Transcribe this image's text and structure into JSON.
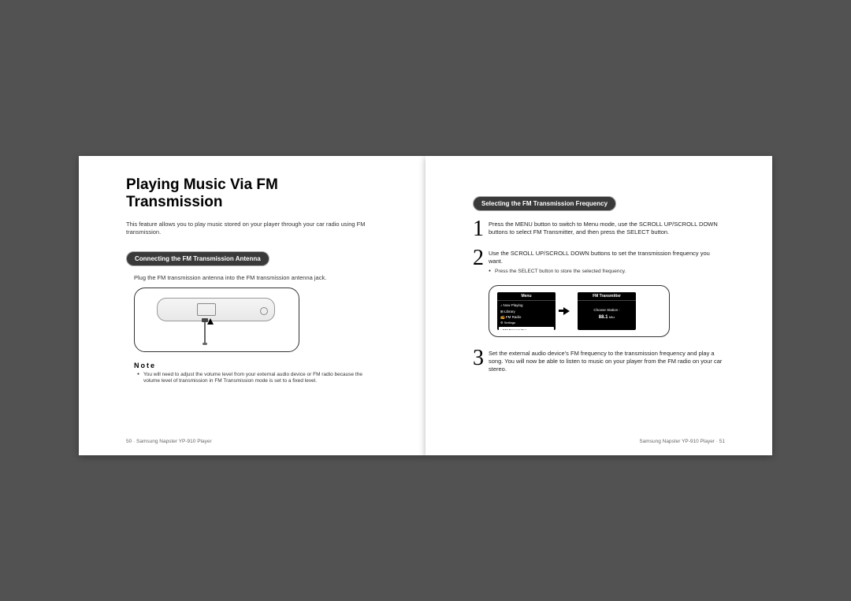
{
  "left": {
    "title": "Playing Music Via FM Transmission",
    "intro": "This feature allows you to play music stored on your player through your car radio using FM transmission.",
    "section1": "Connecting the FM Transmission Antenna",
    "plug": "Plug the FM transmission antenna into the FM transmission antenna jack.",
    "note_head": "Note",
    "note_body": "You will need to adjust the volume level from your external audio device or FM radio because the volume level of transmission in FM Transmission mode is set to a fixed level.",
    "footer": "50 ·  Samsung Napster YP-910 Player"
  },
  "right": {
    "section2": "Selecting the FM Transmission Frequency",
    "steps": [
      {
        "n": "1",
        "text": "Press the MENU button to switch to Menu mode, use the SCROLL UP/SCROLL DOWN buttons to select FM Transmitter, and then press the SELECT button."
      },
      {
        "n": "2",
        "text": "Use the SCROLL UP/SCROLL DOWN buttons to set the transmission frequency you want.",
        "sub": "Press the SELECT button to store the selected frequency."
      },
      {
        "n": "3",
        "text": "Set the external audio device's FM frequency to the transmission frequency and play a song. You will now be able to listen to music on your player from the FM radio on your car stereo."
      }
    ],
    "screen_menu": {
      "title": "Menu",
      "rows": [
        "♪ Now Playing",
        "⊞ Library",
        "📻 FM Radio",
        "⚙ Settings"
      ],
      "selected": "• FM Transmitter"
    },
    "screen_fm": {
      "title": "FM Transmitter",
      "label": "Choose Station :",
      "value": "88.1",
      "unit": "Mhz"
    },
    "footer": "Samsung Napster YP-910 Player  · 51"
  }
}
